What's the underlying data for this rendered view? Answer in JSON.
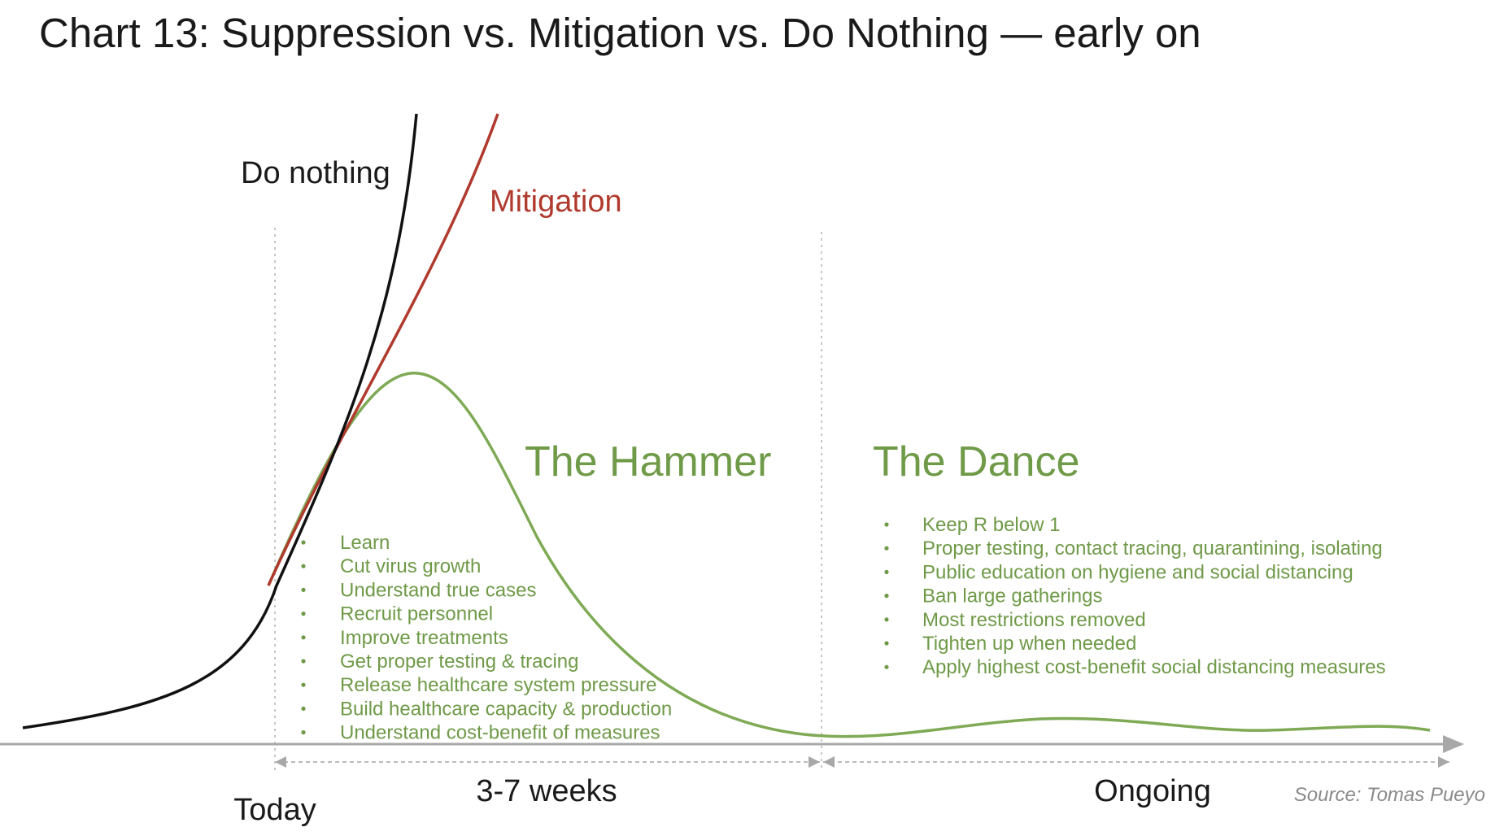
{
  "chart_data": {
    "type": "line",
    "title": "Chart 13: Suppression vs. Mitigation vs. Do Nothing — early on",
    "xlabel": "",
    "ylabel": "",
    "grid": false,
    "colors": {
      "do_nothing": "#111111",
      "mitigation": "#b03a2e",
      "suppression": "#7faa55",
      "bullet_text": "#6f9a48",
      "axis": "#a8a8a8"
    },
    "series": [
      {
        "key": "do_nothing",
        "name": "Do nothing",
        "values": []
      },
      {
        "key": "mitigation",
        "name": "Mitigation",
        "values": []
      },
      {
        "key": "suppression",
        "values": []
      }
    ],
    "phases": [
      {
        "name": "The Hammer",
        "duration": "3-7 weeks",
        "bullets": [
          "Learn",
          "Cut virus growth",
          "Understand true cases",
          "Recruit personnel",
          "Improve treatments",
          "Get proper testing & tracing",
          "Release healthcare system pressure",
          "Build healthcare capacity & production",
          "Understand cost-benefit of measures"
        ]
      },
      {
        "name": "The Dance",
        "duration": "Ongoing",
        "bullets": [
          "Keep R below 1",
          "Proper testing, contact tracing, quarantining, isolating",
          "Public education on hygiene and social distancing",
          "Ban large gatherings",
          "Most restrictions removed",
          "Tighten up when needed",
          "Apply highest cost-benefit social distancing measures"
        ]
      }
    ],
    "x_markers": [
      "Today"
    ],
    "source": "Source: Tomas Pueyo"
  }
}
